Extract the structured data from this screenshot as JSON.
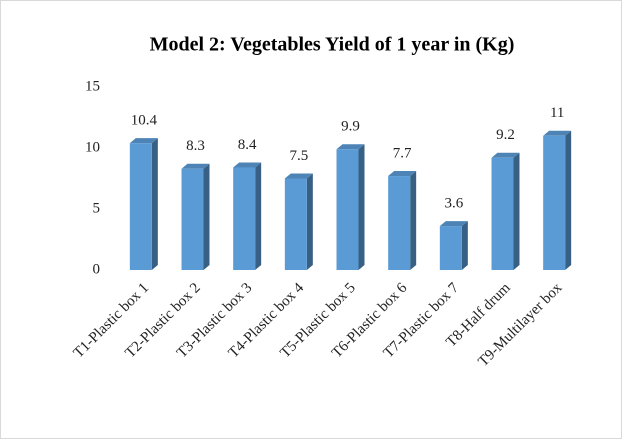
{
  "chart_data": {
    "type": "bar",
    "title": "Model 2: Vegetables Yield of 1 year in (Kg)",
    "categories": [
      "T1-Plastic box 1",
      "T2-Plastic box 2",
      "T3-Plastic box 3",
      "T4-Plastic box 4",
      "T5-Plastic box 5",
      "T6-Plastic box 6",
      "T7-Plastic box 7",
      "T8-Half drum",
      "T9-Multilayer box"
    ],
    "values": [
      10.4,
      8.3,
      8.4,
      7.5,
      9.9,
      7.7,
      3.6,
      9.2,
      11
    ],
    "color": "#5b9bd5",
    "ylim": [
      0,
      15
    ],
    "yticks": [
      0,
      5,
      10,
      15
    ],
    "grid": false
  }
}
